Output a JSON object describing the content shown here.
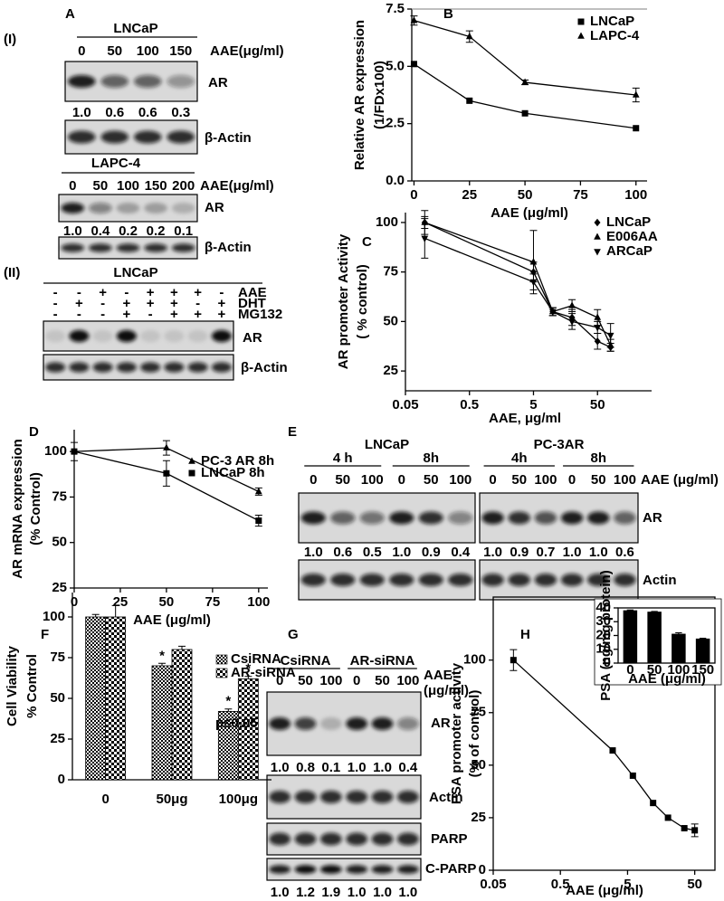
{
  "figure": {
    "A": {
      "label": "A",
      "I": {
        "label": "(I)",
        "lncap": {
          "title": "LNCaP",
          "doses": [
            "0",
            "50",
            "100",
            "150"
          ],
          "dose_label": "AAE(μg/ml)",
          "ar": "AR",
          "ratios": [
            "1.0",
            "0.6",
            "0.6",
            "0.3"
          ],
          "actin": "β-Actin"
        },
        "lapc4": {
          "title": "LAPC-4",
          "doses": [
            "0",
            "50",
            "100",
            "150",
            "200"
          ],
          "dose_label": "AAE(μg/ml)",
          "ar": "AR",
          "ratios": [
            "1.0",
            "0.4",
            "0.2",
            "0.2",
            "0.1"
          ],
          "actin": "β-Actin"
        }
      },
      "II": {
        "label": "(II)",
        "title": "LNCaP",
        "rows": [
          {
            "name": "AAE",
            "signs": [
              "-",
              "-",
              "+",
              "-",
              "+",
              "+",
              "+",
              "-"
            ]
          },
          {
            "name": "DHT",
            "signs": [
              "-",
              "+",
              "-",
              "+",
              "+",
              "+",
              "-",
              "+"
            ]
          },
          {
            "name": "MG132",
            "signs": [
              "-",
              "-",
              "-",
              "+",
              "-",
              "+",
              "+",
              "+"
            ]
          }
        ],
        "ar": "AR",
        "actin": "β-Actin"
      }
    },
    "E": {
      "label": "E",
      "dose_label": "AAE (μg/ml)",
      "ar": "AR",
      "actin": "Actin",
      "left": {
        "title": "LNCaP",
        "times": [
          "4 h",
          "8h"
        ],
        "doses": [
          "0",
          "50",
          "100",
          "0",
          "50",
          "100"
        ],
        "ratios": [
          "1.0",
          "0.6",
          "0.5",
          "1.0",
          "0.9",
          "0.4"
        ]
      },
      "right": {
        "title": "PC-3AR",
        "times": [
          "4h",
          "8h"
        ],
        "doses": [
          "0",
          "50",
          "100",
          "0",
          "50",
          "100"
        ],
        "ratios": [
          "1.0",
          "0.9",
          "0.7",
          "1.0",
          "1.0",
          "0.6"
        ]
      }
    },
    "G": {
      "label": "G",
      "groups": [
        "CsiRNA",
        "AR-siRNA"
      ],
      "doses": [
        "0",
        "50",
        "100",
        "0",
        "50",
        "100"
      ],
      "dose_label": [
        "AAE",
        "(μg/ml)"
      ],
      "ar": "AR",
      "ar_ratios": [
        "1.0",
        "0.8",
        "0.1",
        "1.0",
        "1.0",
        "0.4"
      ],
      "actin": "Actin",
      "parp": "PARP",
      "cparp": "C-PARP",
      "cparp_ratios": [
        "1.0",
        "1.2",
        "1.9",
        "1.0",
        "1.0",
        "1.0"
      ]
    }
  },
  "chart_data": [
    {
      "panel": "B",
      "type": "line",
      "x": [
        0,
        25,
        50,
        100
      ],
      "series": [
        {
          "name": "LNCaP",
          "marker": "square",
          "values": [
            5.1,
            3.5,
            2.95,
            2.3
          ]
        },
        {
          "name": "LAPC-4",
          "marker": "triangle",
          "values": [
            7.0,
            6.3,
            4.3,
            3.75
          ],
          "errors": [
            0.2,
            0.25,
            0.1,
            0.3
          ]
        }
      ],
      "xlim": [
        -1,
        105
      ],
      "ylim": [
        0,
        7.5
      ],
      "xticks": [
        0,
        25,
        50,
        75,
        100
      ],
      "yticks": [
        {
          "value": 0,
          "label": "0.0"
        },
        2.5,
        {
          "value": 5,
          "label": "5.0"
        },
        7.5
      ],
      "xlabel": "AAE (μg/ml)",
      "ylabel": [
        "Relative AR expression",
        "(1/FDx100)"
      ],
      "legend": "upper right",
      "color": "#000000"
    },
    {
      "panel": "C",
      "type": "line",
      "log_x": true,
      "x": [
        0.1,
        5,
        10,
        20,
        50,
        80
      ],
      "series": [
        {
          "name": "LNCaP",
          "marker": "diamond",
          "values": [
            100,
            75,
            55,
            52,
            40,
            37
          ],
          "errors": [
            6,
            5,
            2,
            4,
            4,
            2
          ]
        },
        {
          "name": "E006AA",
          "marker": "triangle",
          "values": [
            100,
            80,
            55,
            58,
            52,
            38
          ],
          "errors": [
            3,
            16,
            2,
            3,
            4,
            3
          ]
        },
        {
          "name": "ARCaP",
          "marker": "down-triangle",
          "values": [
            92,
            70,
            55,
            50,
            47,
            43
          ],
          "errors": [
            10,
            4,
            2,
            4,
            3,
            6
          ]
        }
      ],
      "xlim": [
        0.05,
        350
      ],
      "ylim": [
        15,
        105
      ],
      "xticks": [
        0.05,
        0.5,
        5,
        50
      ],
      "yticks": [
        25,
        50,
        75,
        100
      ],
      "xlabel": "AAE, μg/ml",
      "ylabel": [
        "AR promoter Activity",
        "( % control)"
      ],
      "legend": "upper right",
      "color": "#000000"
    },
    {
      "panel": "D",
      "type": "line",
      "x": [
        0,
        50,
        100
      ],
      "series": [
        {
          "name": "PC-3 AR 8h",
          "marker": "triangle",
          "values": [
            100,
            102,
            78
          ],
          "errors": [
            0,
            4,
            2
          ]
        },
        {
          "name": "LNCaP 8h",
          "marker": "square",
          "values": [
            100,
            88,
            62
          ],
          "errors": [
            5,
            7,
            3
          ]
        }
      ],
      "xlim": [
        0,
        105
      ],
      "ylim": [
        25,
        112
      ],
      "xticks": [
        0,
        25,
        50,
        75,
        100
      ],
      "yticks": [
        25,
        50,
        75,
        100
      ],
      "xlabel": "AAE (μg/ml)",
      "ylabel": [
        "AR mRNA expression",
        "(% Control)"
      ],
      "legend": "upper right",
      "color": "#000000"
    },
    {
      "panel": "F",
      "type": "bar",
      "categories": [
        "0",
        "50μg",
        "100μg"
      ],
      "series": [
        {
          "name": "CsiRNA",
          "hatch": "fine",
          "values": [
            100,
            70,
            42
          ],
          "errors": [
            1.5,
            1.5,
            1.5
          ],
          "stars": [
            null,
            "*",
            "*"
          ]
        },
        {
          "name": "AR-siRNA",
          "hatch": "coarse",
          "values": [
            100,
            80,
            62
          ],
          "errors": [
            7,
            2,
            1.5
          ],
          "stars": [
            null,
            null,
            "*"
          ]
        }
      ],
      "ylim": [
        0,
        115
      ],
      "yticks": [
        0,
        25,
        50,
        75,
        100
      ],
      "ylabel": [
        "Cell Viability",
        "% Control"
      ],
      "annotation": "p≤0.05",
      "legend": "upper right"
    },
    {
      "panel": "H",
      "type": "line",
      "log_x": true,
      "x": [
        0.1,
        3,
        6,
        12,
        20,
        35,
        50
      ],
      "values": [
        100,
        57,
        45,
        32,
        25,
        20,
        19
      ],
      "errors": [
        5,
        0,
        0,
        0,
        0,
        0,
        3
      ],
      "marker": "square",
      "xlim": [
        0.05,
        100
      ],
      "ylim": [
        0,
        130
      ],
      "xticks": [
        0.05,
        0.5,
        5,
        50
      ],
      "yticks": [
        0,
        25,
        50,
        75,
        100
      ],
      "xlabel": "AAE (μg/ml)",
      "ylabel": [
        "PSA promoter activity",
        "(% of control)"
      ],
      "color": "#000000"
    },
    {
      "type": "bar",
      "categories": [
        "0",
        "50",
        "100",
        "150"
      ],
      "values": [
        38,
        37,
        21,
        17.5
      ],
      "errors": [
        0.5,
        0.5,
        1,
        0.5
      ],
      "ylim": [
        0,
        40
      ],
      "yticks": [
        0,
        10,
        20,
        30,
        40
      ],
      "ylabel": "PSA (ng/mg protein)",
      "xlabel": "AAE (μg/ml)",
      "color": "#000000"
    }
  ]
}
